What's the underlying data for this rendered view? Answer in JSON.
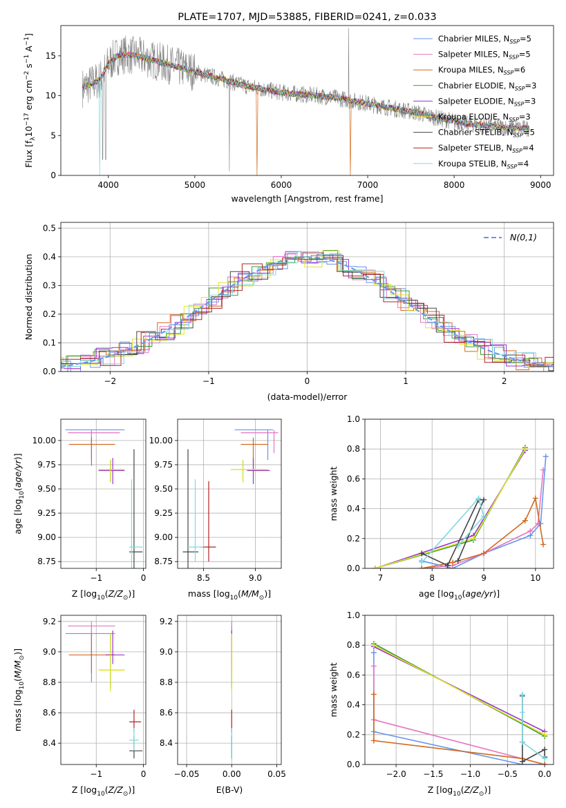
{
  "chart_data": [
    {
      "id": "spectrum",
      "type": "line",
      "title": "PLATE=1707, MJD=53885, FIBERID=0241, z=0.033",
      "xlabel": "wavelength [Angstrom, rest frame]",
      "ylabel": "Flux [f_λ10^-17 erg cm^-2 s^-1 A^-1]",
      "xlim": [
        3450,
        9150
      ],
      "ylim": [
        0,
        18.8
      ],
      "xticks": [
        4000,
        5000,
        6000,
        7000,
        8000,
        9000
      ],
      "yticks": [
        0,
        5,
        10,
        15
      ],
      "legend_position": "top-right",
      "legend": [
        {
          "name": "Chabrier MILES, N",
          "sub": "SSP",
          "suffix": "=5",
          "color": "#6495ed"
        },
        {
          "name": "Salpeter MILES, N",
          "sub": "SSP",
          "suffix": "=5",
          "color": "#e377c2"
        },
        {
          "name": "Kroupa MILES, N",
          "sub": "SSP",
          "suffix": "=6",
          "color": "#d2691e"
        },
        {
          "name": "Chabrier ELODIE, N",
          "sub": "SSP",
          "suffix": "=3",
          "color": "#3a9a3a"
        },
        {
          "name": "Salpeter ELODIE, N",
          "sub": "SSP",
          "suffix": "=3",
          "color": "#9932cc"
        },
        {
          "name": "Kroupa ELODIE, N",
          "sub": "SSP",
          "suffix": "=3",
          "color": "#e2e52a"
        },
        {
          "name": "Chabrier STELIB, N",
          "sub": "SSP",
          "suffix": "=5",
          "color": "#444444"
        },
        {
          "name": "Salpeter STELIB, N",
          "sub": "SSP",
          "suffix": "=4",
          "color": "#b22222"
        },
        {
          "name": "Kroupa STELIB, N",
          "sub": "SSP",
          "suffix": "=4",
          "color": "#7fd8e0"
        }
      ],
      "data_color": "#808080",
      "continuum": [
        [
          3700,
          11
        ],
        [
          3800,
          11.5
        ],
        [
          3900,
          12
        ],
        [
          4000,
          14
        ],
        [
          4100,
          15
        ],
        [
          4200,
          15.2
        ],
        [
          4300,
          15
        ],
        [
          4400,
          14.8
        ],
        [
          4600,
          14.2
        ],
        [
          4800,
          13.6
        ],
        [
          5000,
          13.0
        ],
        [
          5200,
          12.4
        ],
        [
          5400,
          11.8
        ],
        [
          5600,
          11.2
        ],
        [
          5800,
          10.8
        ],
        [
          6000,
          10.4
        ],
        [
          6200,
          10.2
        ],
        [
          6400,
          10.0
        ],
        [
          6600,
          9.8
        ],
        [
          6800,
          9.4
        ],
        [
          7000,
          9.0
        ],
        [
          7200,
          8.6
        ],
        [
          7400,
          8.2
        ],
        [
          7600,
          7.8
        ],
        [
          7800,
          7.2
        ],
        [
          8000,
          6.8
        ],
        [
          8200,
          6.4
        ],
        [
          8400,
          6.2
        ],
        [
          8600,
          6.0
        ],
        [
          8800,
          5.9
        ]
      ]
    },
    {
      "id": "residuals",
      "type": "line",
      "xlabel": "(data-model)/error",
      "ylabel": "Normed distribution",
      "xlim": [
        -2.5,
        2.5
      ],
      "ylim": [
        0,
        0.52
      ],
      "xticks": [
        -2,
        -1,
        0,
        1,
        2
      ],
      "yticks": [
        0.0,
        0.1,
        0.2,
        0.3,
        0.4,
        0.5
      ],
      "legend_position": "top-right",
      "reference_label": "N(0,1)",
      "reference_color": "#6495ed"
    },
    {
      "id": "age_vs_Z",
      "type": "scatter",
      "xlabel": "Z [log10(Z/Z⊙)]",
      "ylabel": "age [log10(age/yr)]",
      "xlim": [
        -1.75,
        0.05
      ],
      "ylim": [
        8.68,
        10.22
      ],
      "xticks": [
        -1,
        0
      ],
      "yticks": [
        8.75,
        9.0,
        9.25,
        9.5,
        9.75,
        10.0
      ],
      "points": [
        {
          "x": -1.1,
          "x_lo": -1.65,
          "x_hi": -0.4,
          "y": 10.11,
          "y_lo": 9.8,
          "y_hi": 10.11,
          "color": "#6495ed"
        },
        {
          "x": -1.1,
          "x_lo": -1.6,
          "x_hi": -0.5,
          "y": 10.08,
          "y_lo": 9.87,
          "y_hi": 10.11,
          "color": "#e377c2"
        },
        {
          "x": -1.1,
          "x_lo": -1.58,
          "x_hi": -0.6,
          "y": 9.96,
          "y_lo": 9.74,
          "y_hi": 10.03,
          "color": "#d2691e"
        },
        {
          "x": -0.7,
          "x_lo": -0.95,
          "x_hi": -0.4,
          "y": 9.7,
          "y_lo": 9.57,
          "y_hi": 9.8,
          "color": "#3a9a3a"
        },
        {
          "x": -0.65,
          "x_lo": -0.95,
          "x_hi": -0.4,
          "y": 9.69,
          "y_lo": 9.55,
          "y_hi": 9.82,
          "color": "#9932cc"
        },
        {
          "x": -0.7,
          "x_lo": -0.95,
          "x_hi": -0.4,
          "y": 9.7,
          "y_lo": 9.57,
          "y_hi": 9.8,
          "color": "#e2e52a"
        },
        {
          "x": -0.2,
          "x_lo": -0.3,
          "x_hi": -0.02,
          "y": 8.85,
          "y_lo": 8.68,
          "y_hi": 9.91,
          "color": "#444444"
        },
        {
          "x": -0.25,
          "x_lo": -0.3,
          "x_hi": -0.02,
          "y": 8.9,
          "y_lo": 8.68,
          "y_hi": 9.6,
          "color": "#7fd8e0"
        }
      ]
    },
    {
      "id": "age_vs_mass",
      "type": "scatter",
      "xlabel": "mass [log10(M/M⊙)]",
      "ylabel": "",
      "xlim": [
        8.25,
        9.25
      ],
      "ylim": [
        8.68,
        10.22
      ],
      "xticks": [
        8.5,
        9.0
      ],
      "yticks": [
        8.75,
        9.0,
        9.25,
        9.5,
        9.75,
        10.0
      ],
      "points": [
        {
          "x": 9.12,
          "x_lo": 8.8,
          "x_hi": 9.17,
          "y": 10.11,
          "y_lo": 9.8,
          "y_hi": 10.11,
          "color": "#6495ed"
        },
        {
          "x": 9.18,
          "x_lo": 8.86,
          "x_hi": 9.22,
          "y": 10.08,
          "y_lo": 9.87,
          "y_hi": 10.11,
          "color": "#e377c2"
        },
        {
          "x": 8.98,
          "x_lo": 8.86,
          "x_hi": 9.12,
          "y": 9.96,
          "y_lo": 9.74,
          "y_hi": 10.03,
          "color": "#d2691e"
        },
        {
          "x": 8.88,
          "x_lo": 8.76,
          "x_hi": 9.12,
          "y": 9.7,
          "y_lo": 9.57,
          "y_hi": 9.8,
          "color": "#3a9a3a"
        },
        {
          "x": 8.98,
          "x_lo": 8.92,
          "x_hi": 9.14,
          "y": 9.69,
          "y_lo": 9.55,
          "y_hi": 9.82,
          "color": "#9932cc"
        },
        {
          "x": 8.88,
          "x_lo": 8.76,
          "x_hi": 9.12,
          "y": 9.7,
          "y_lo": 9.57,
          "y_hi": 9.8,
          "color": "#e2e52a"
        },
        {
          "x": 8.35,
          "x_lo": 8.3,
          "x_hi": 8.45,
          "y": 8.85,
          "y_lo": 8.68,
          "y_hi": 9.91,
          "color": "#444444"
        },
        {
          "x": 8.55,
          "x_lo": 8.47,
          "x_hi": 8.62,
          "y": 8.9,
          "y_lo": 8.75,
          "y_hi": 9.58,
          "color": "#b22222"
        },
        {
          "x": 8.42,
          "x_lo": 8.35,
          "x_hi": 8.5,
          "y": 8.9,
          "y_lo": 8.75,
          "y_hi": 9.6,
          "color": "#7fd8e0"
        }
      ]
    },
    {
      "id": "weight_vs_age",
      "type": "line",
      "xlabel": "age [log10(age/yr)]",
      "ylabel": "mass weight",
      "xlim": [
        6.7,
        10.35
      ],
      "ylim": [
        0,
        1.0
      ],
      "xticks": [
        7,
        8,
        9,
        10
      ],
      "yticks": [
        0.0,
        0.2,
        0.4,
        0.6,
        0.8,
        1.0
      ],
      "series": [
        {
          "color": "#6495ed",
          "points": [
            [
              7.8,
              0.05
            ],
            [
              8.4,
              0.0
            ],
            [
              9.0,
              0.1
            ],
            [
              9.9,
              0.22
            ],
            [
              10.1,
              0.3
            ],
            [
              10.2,
              0.75
            ]
          ]
        },
        {
          "color": "#e377c2",
          "points": [
            [
              7.8,
              0.0
            ],
            [
              8.4,
              0.02
            ],
            [
              9.0,
              0.1
            ],
            [
              9.9,
              0.25
            ],
            [
              10.05,
              0.3
            ],
            [
              10.15,
              0.66
            ]
          ]
        },
        {
          "color": "#d2691e",
          "points": [
            [
              7.8,
              0.0
            ],
            [
              8.4,
              0.04
            ],
            [
              9.0,
              0.1
            ],
            [
              9.8,
              0.32
            ],
            [
              10.0,
              0.47
            ],
            [
              10.15,
              0.16
            ]
          ]
        },
        {
          "color": "#3a9a3a",
          "points": [
            [
              6.9,
              0.0
            ],
            [
              8.8,
              0.19
            ],
            [
              9.8,
              0.81
            ]
          ]
        },
        {
          "color": "#9932cc",
          "points": [
            [
              6.9,
              0.0
            ],
            [
              8.8,
              0.22
            ],
            [
              9.8,
              0.79
            ]
          ]
        },
        {
          "color": "#e2e52a",
          "points": [
            [
              6.9,
              0.0
            ],
            [
              8.8,
              0.2
            ],
            [
              9.8,
              0.8
            ]
          ]
        },
        {
          "color": "#444444",
          "points": [
            [
              7.8,
              0.1
            ],
            [
              8.3,
              0.02
            ],
            [
              8.9,
              0.46
            ],
            [
              9.0,
              0.46
            ],
            [
              8.5,
              0.05
            ]
          ]
        },
        {
          "color": "#7fd8e0",
          "points": [
            [
              7.8,
              0.04
            ],
            [
              8.9,
              0.47
            ],
            [
              9.0,
              0.35
            ],
            [
              8.5,
              0.15
            ]
          ]
        }
      ]
    },
    {
      "id": "mass_vs_Z",
      "type": "scatter",
      "xlabel": "Z [log10(Z/Z⊙)]",
      "ylabel": "mass [log10(M/M⊙)]",
      "xlim": [
        -1.75,
        0.05
      ],
      "ylim": [
        8.26,
        9.24
      ],
      "xticks": [
        -1,
        0
      ],
      "yticks": [
        8.4,
        8.6,
        8.8,
        9.0,
        9.2
      ],
      "points": [
        {
          "x": -1.1,
          "x_lo": -1.65,
          "x_hi": -0.6,
          "y": 9.12,
          "y_lo": 8.8,
          "y_hi": 9.17,
          "color": "#6495ed"
        },
        {
          "x": -1.1,
          "x_lo": -1.6,
          "x_hi": -0.6,
          "y": 9.17,
          "y_lo": 8.86,
          "y_hi": 9.2,
          "color": "#e377c2"
        },
        {
          "x": -1.1,
          "x_lo": -1.58,
          "x_hi": -0.6,
          "y": 8.98,
          "y_lo": 8.86,
          "y_hi": 9.12,
          "color": "#d2691e"
        },
        {
          "x": -0.7,
          "x_lo": -0.95,
          "x_hi": -0.4,
          "y": 8.88,
          "y_lo": 8.76,
          "y_hi": 9.12,
          "color": "#3a9a3a"
        },
        {
          "x": -0.65,
          "x_lo": -0.8,
          "x_hi": -0.4,
          "y": 8.98,
          "y_lo": 8.92,
          "y_hi": 9.14,
          "color": "#9932cc"
        },
        {
          "x": -0.7,
          "x_lo": -0.95,
          "x_hi": -0.4,
          "y": 8.88,
          "y_lo": 8.74,
          "y_hi": 9.12,
          "color": "#e2e52a"
        },
        {
          "x": -0.2,
          "x_lo": -0.3,
          "x_hi": -0.02,
          "y": 8.35,
          "y_lo": 8.3,
          "y_hi": 8.45,
          "color": "#444444"
        },
        {
          "x": -0.2,
          "x_lo": -0.3,
          "x_hi": -0.05,
          "y": 8.54,
          "y_lo": 8.47,
          "y_hi": 8.62,
          "color": "#b22222"
        },
        {
          "x": -0.2,
          "x_lo": -0.3,
          "x_hi": -0.1,
          "y": 8.42,
          "y_lo": 8.35,
          "y_hi": 8.5,
          "color": "#7fd8e0"
        }
      ]
    },
    {
      "id": "mass_vs_ebv",
      "type": "scatter",
      "xlabel": "E(B-V)",
      "ylabel": "",
      "xlim": [
        -0.06,
        0.055
      ],
      "ylim": [
        8.26,
        9.24
      ],
      "xticks": [
        -0.05,
        0.0,
        0.05
      ],
      "yticks": [
        8.4,
        8.6,
        8.8,
        9.0,
        9.2
      ],
      "points": [
        {
          "x": 0.0,
          "y": 9.12,
          "y_lo": 8.8,
          "y_hi": 9.17,
          "color": "#6495ed"
        },
        {
          "x": 0.0,
          "y": 9.17,
          "y_lo": 8.86,
          "y_hi": 9.2,
          "color": "#e377c2"
        },
        {
          "x": 0.0,
          "y": 8.98,
          "y_lo": 8.86,
          "y_hi": 9.12,
          "color": "#d2691e"
        },
        {
          "x": 0.0,
          "y": 8.88,
          "y_lo": 8.76,
          "y_hi": 9.12,
          "color": "#3a9a3a"
        },
        {
          "x": 0.0,
          "y": 8.98,
          "y_lo": 8.92,
          "y_hi": 9.14,
          "color": "#9932cc"
        },
        {
          "x": 0.0,
          "y": 8.88,
          "y_lo": 8.74,
          "y_hi": 9.12,
          "color": "#e2e52a"
        },
        {
          "x": 0.0,
          "y": 8.35,
          "y_lo": 8.3,
          "y_hi": 8.45,
          "color": "#444444"
        },
        {
          "x": 0.0,
          "y": 8.54,
          "y_lo": 8.47,
          "y_hi": 8.62,
          "color": "#b22222"
        },
        {
          "x": 0.0,
          "y": 8.42,
          "y_lo": 8.3,
          "y_hi": 8.5,
          "color": "#7fd8e0"
        }
      ]
    },
    {
      "id": "weight_vs_Z",
      "type": "line",
      "xlabel": "Z [log10(Z/Z⊙)]",
      "ylabel": "mass weight",
      "xlim": [
        -2.42,
        0.12
      ],
      "ylim": [
        0,
        1.0
      ],
      "xticks": [
        -2.0,
        -1.5,
        -1.0,
        -0.5,
        0.0
      ],
      "yticks": [
        0.0,
        0.2,
        0.4,
        0.6,
        0.8,
        1.0
      ],
      "series": [
        {
          "color": "#6495ed",
          "points": [
            [
              -2.3,
              0.75
            ],
            [
              -2.3,
              0.22
            ],
            [
              -0.3,
              0.0
            ],
            [
              0.0,
              0.0
            ]
          ]
        },
        {
          "color": "#e377c2",
          "points": [
            [
              -2.3,
              0.66
            ],
            [
              -2.3,
              0.3
            ],
            [
              0.0,
              0.0
            ]
          ]
        },
        {
          "color": "#d2691e",
          "points": [
            [
              -2.3,
              0.47
            ],
            [
              -2.3,
              0.16
            ],
            [
              -0.3,
              0.04
            ],
            [
              0.0,
              0.0
            ]
          ]
        },
        {
          "color": "#3a9a3a",
          "points": [
            [
              -2.3,
              0.81
            ],
            [
              0.0,
              0.19
            ]
          ]
        },
        {
          "color": "#9932cc",
          "points": [
            [
              -2.3,
              0.79
            ],
            [
              0.0,
              0.22
            ]
          ]
        },
        {
          "color": "#e2e52a",
          "points": [
            [
              -2.3,
              0.8
            ],
            [
              0.0,
              0.2
            ]
          ]
        },
        {
          "color": "#444444",
          "points": [
            [
              -0.3,
              0.46
            ],
            [
              -0.3,
              0.15
            ],
            [
              -0.3,
              0.02
            ],
            [
              0.0,
              0.1
            ],
            [
              0.0,
              0.05
            ]
          ]
        },
        {
          "color": "#7fd8e0",
          "points": [
            [
              -0.3,
              0.47
            ],
            [
              -0.3,
              0.35
            ],
            [
              -0.3,
              0.15
            ],
            [
              0.0,
              0.04
            ]
          ]
        }
      ]
    }
  ]
}
